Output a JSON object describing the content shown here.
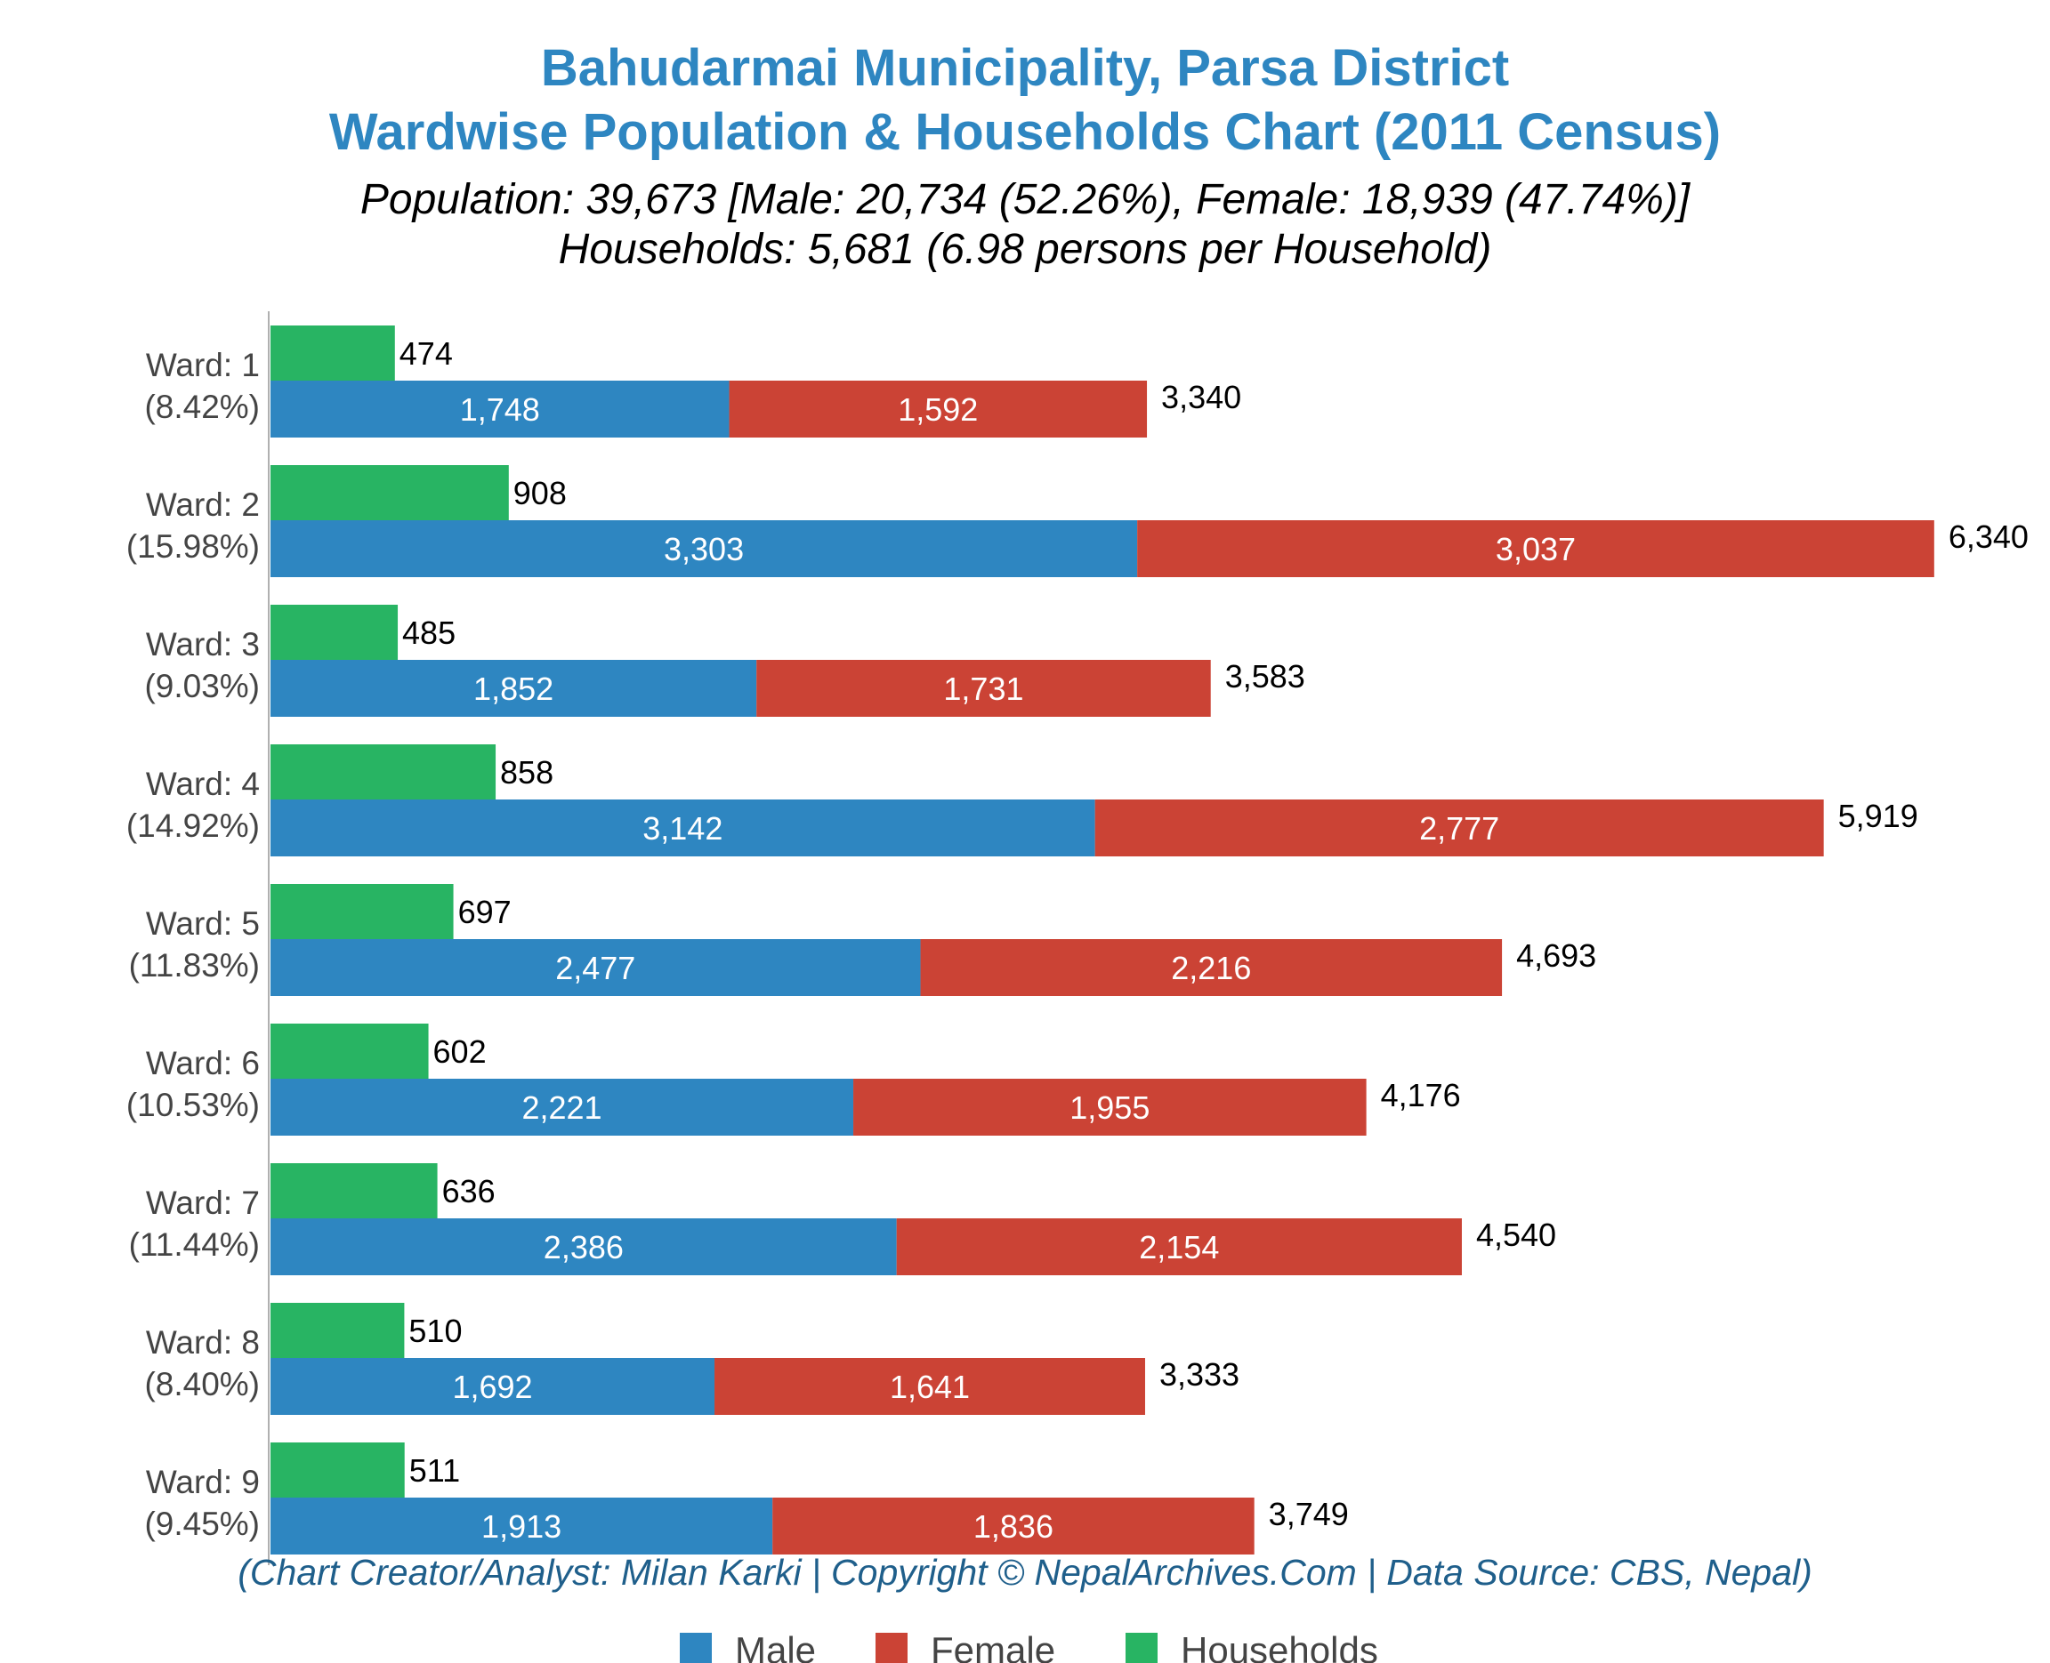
{
  "chart_data": {
    "type": "bar",
    "orientation": "horizontal",
    "stacked_series": [
      "Male",
      "Female"
    ],
    "title": [
      "Bahudarmai Municipality, Parsa District",
      "Wardwise Population & Households Chart (2011 Census)"
    ],
    "subtitle": [
      "Population: 39,673 [Male: 20,734 (52.26%), Female: 18,939 (47.74%)]",
      "Households: 5,681 (6.98 persons per Household)"
    ],
    "categories": [
      "Ward: 1",
      "Ward: 2",
      "Ward: 3",
      "Ward: 4",
      "Ward: 5",
      "Ward: 6",
      "Ward: 7",
      "Ward: 8",
      "Ward: 9"
    ],
    "category_shares": [
      "(8.42%)",
      "(15.98%)",
      "(9.03%)",
      "(14.92%)",
      "(11.83%)",
      "(10.53%)",
      "(11.44%)",
      "(8.40%)",
      "(9.45%)"
    ],
    "series": [
      {
        "name": "Male",
        "color": "#2E86C1",
        "values": [
          1748,
          3303,
          1852,
          3142,
          2477,
          2221,
          2386,
          1692,
          1913
        ],
        "labels": [
          "1,748",
          "3,303",
          "1,852",
          "3,142",
          "2,477",
          "2,221",
          "2,386",
          "1,692",
          "1,913"
        ]
      },
      {
        "name": "Female",
        "color": "#CB4335",
        "values": [
          1592,
          3037,
          1731,
          2777,
          2216,
          1955,
          2154,
          1641,
          1836
        ],
        "labels": [
          "1,592",
          "3,037",
          "1,731",
          "2,777",
          "2,216",
          "1,955",
          "2,154",
          "1,641",
          "1,836"
        ]
      },
      {
        "name": "Households",
        "color": "#28B463",
        "values": [
          474,
          908,
          485,
          858,
          697,
          602,
          636,
          510,
          511
        ],
        "labels": [
          "474",
          "908",
          "485",
          "858",
          "697",
          "602",
          "636",
          "510",
          "511"
        ]
      }
    ],
    "totals": {
      "values": [
        3340,
        6340,
        3583,
        5919,
        4693,
        4176,
        4540,
        3333,
        3749
      ],
      "labels": [
        "3,340",
        "6,340",
        "3,583",
        "5,919",
        "4,693",
        "4,176",
        "4,540",
        "3,333",
        "3,749"
      ]
    },
    "xlim": [
      0,
      6700
    ],
    "grid": false,
    "legend_position": "bottom-center",
    "credit": "(Chart Creator/Analyst: Milan Karki | Copyright © NepalArchives.Com | Data Source: CBS, Nepal)"
  }
}
